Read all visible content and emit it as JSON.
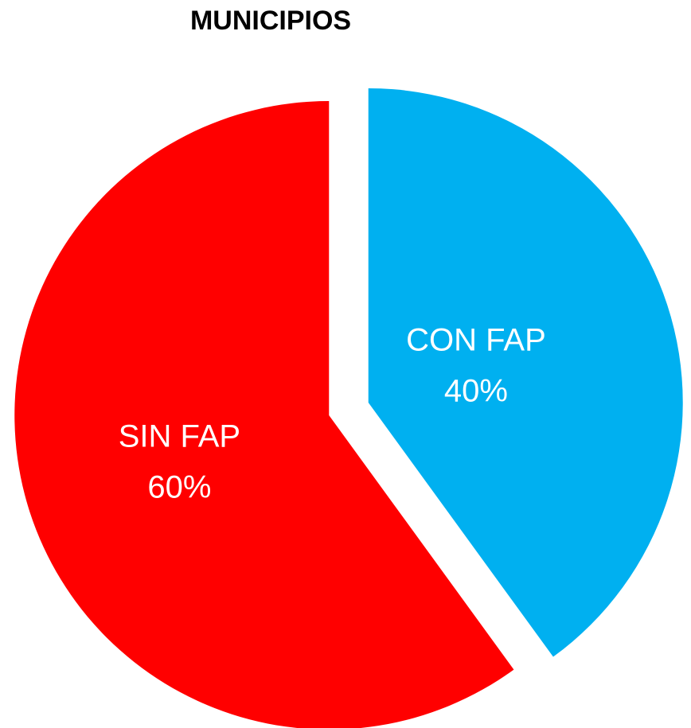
{
  "chart_data": {
    "type": "pie",
    "title": "MUNICIPIOS",
    "categories": [
      "CON FAP",
      "SIN FAP"
    ],
    "values": [
      40,
      60
    ],
    "value_labels": [
      "40%",
      "60%"
    ],
    "colors": [
      "#00b0f0",
      "#ff0000"
    ]
  }
}
